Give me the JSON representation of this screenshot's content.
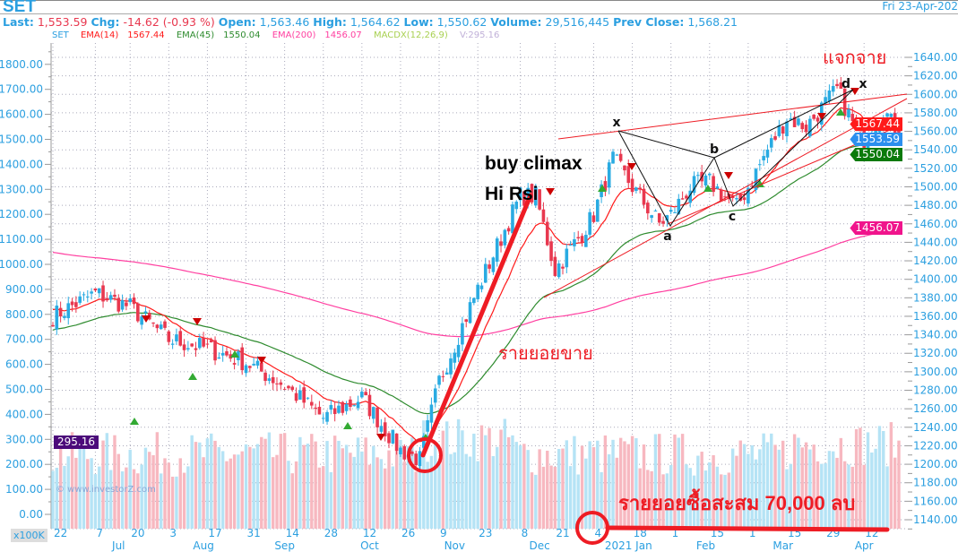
{
  "header": {
    "symbol": "SET",
    "date": "Fri 23-Apr-202",
    "last_label": "Last:",
    "last": "1,553.59",
    "chg_label": "Chg:",
    "chg": "-14.62 (-0.93 %)",
    "open_label": "Open:",
    "open": "1,563.46",
    "high_label": "High:",
    "high": "1,564.62",
    "low_label": "Low:",
    "low": "1,550.62",
    "volume_label": "Volume:",
    "volume": "29,516,445",
    "prev_label": "Prev Close:",
    "prev": "1,568.21"
  },
  "legend": {
    "symbol": "SET",
    "ema14_label": "EMA(14)",
    "ema14": "1567.44",
    "ema45_label": "EMA(45)",
    "ema45": "1550.04",
    "ema200_label": "EMA(200)",
    "ema200": "1456.07",
    "macd_label": "MACDX(12,26,9)",
    "vol_label": "V:295.16"
  },
  "colors": {
    "up": "#29abe2",
    "down": "#e8384f",
    "ema14": "#ff1a1a",
    "ema45": "#2e8b2e",
    "ema200": "#ff3fa0",
    "vol_up": "#b5e3f5",
    "vol_down": "#f7b8c0",
    "annot": "#ee1c24",
    "axis_text": "#2b9fe0"
  },
  "tags": {
    "ema14": "1567.44",
    "last": "1553.59",
    "ema45": "1550.04",
    "ema200": "1456.07",
    "volume": "295.16"
  },
  "volume_unit": "x100K",
  "copyright": "© www.investorZ.com",
  "annotations": {
    "buy_climax": "buy climax",
    "hi_rsi": "Hi Rsi",
    "retail_sell": "รายยอยขาย",
    "distribution": "แจกจาย",
    "retail_buy": "รายยอยซื้อสะสม 70,000 ลบ",
    "points": [
      "x",
      "a",
      "b",
      "c",
      "d",
      "x"
    ]
  },
  "chart_data": {
    "type": "candlestick",
    "title": "SET",
    "y_right": {
      "label": "",
      "range": [
        1140,
        1640
      ],
      "ticks": [
        1140,
        1160,
        1180,
        1200,
        1220,
        1240,
        1260,
        1280,
        1300,
        1320,
        1340,
        1360,
        1380,
        1400,
        1420,
        1440,
        1460,
        1480,
        1500,
        1520,
        1540,
        1560,
        1580,
        1600,
        1620,
        1640
      ]
    },
    "y_left": {
      "label": "x100K",
      "range": [
        0,
        1800
      ],
      "ticks": [
        0,
        100,
        200,
        300,
        400,
        500,
        600,
        700,
        800,
        900,
        1000,
        1100,
        1200,
        1300,
        1400,
        1500,
        1600,
        1700,
        1800
      ]
    },
    "x_range": [
      "2020-06-22",
      "2021-04-23"
    ],
    "x_ticks": [
      {
        "date": "2020-06-22",
        "label": "22"
      },
      {
        "date": "2020-07-07",
        "label": "7"
      },
      {
        "date": "2020-07-20",
        "label": "20"
      },
      {
        "date": "2020-08-03",
        "label": "3"
      },
      {
        "date": "2020-08-17",
        "label": "17"
      },
      {
        "date": "2020-08-31",
        "label": "31"
      },
      {
        "date": "2020-09-14",
        "label": "14"
      },
      {
        "date": "2020-09-28",
        "label": "28"
      },
      {
        "date": "2020-10-12",
        "label": "12"
      },
      {
        "date": "2020-10-26",
        "label": "26"
      },
      {
        "date": "2020-11-09",
        "label": "9"
      },
      {
        "date": "2020-11-23",
        "label": "23"
      },
      {
        "date": "2020-12-08",
        "label": "8"
      },
      {
        "date": "2020-12-21",
        "label": "21"
      },
      {
        "date": "2021-01-04",
        "label": "4"
      },
      {
        "date": "2021-01-18",
        "label": "18"
      },
      {
        "date": "2021-02-01",
        "label": "1"
      },
      {
        "date": "2021-02-15",
        "label": "15"
      },
      {
        "date": "2021-03-01",
        "label": "1"
      },
      {
        "date": "2021-03-15",
        "label": "15"
      },
      {
        "date": "2021-03-29",
        "label": "29"
      },
      {
        "date": "2021-04-12",
        "label": "12"
      }
    ],
    "months": [
      {
        "date": "2020-07-15",
        "label": "Jul"
      },
      {
        "date": "2020-08-14",
        "label": "Aug"
      },
      {
        "date": "2020-09-14",
        "label": "Sep"
      },
      {
        "date": "2020-10-14",
        "label": "Oct"
      },
      {
        "date": "2020-11-13",
        "label": "Nov"
      },
      {
        "date": "2020-12-15",
        "label": "Dec"
      },
      {
        "date": "2021-01-15",
        "label": "2021 Jan"
      },
      {
        "date": "2021-02-12",
        "label": "Feb"
      },
      {
        "date": "2021-03-12",
        "label": "Mar"
      },
      {
        "date": "2021-04-12",
        "label": "Apr"
      }
    ],
    "close_keypoints": [
      [
        "2020-06-22",
        1360
      ],
      [
        "2020-07-07",
        1385
      ],
      [
        "2020-07-20",
        1370
      ],
      [
        "2020-08-03",
        1335
      ],
      [
        "2020-08-17",
        1325
      ],
      [
        "2020-08-31",
        1310
      ],
      [
        "2020-09-14",
        1285
      ],
      [
        "2020-09-28",
        1250
      ],
      [
        "2020-10-12",
        1272
      ],
      [
        "2020-10-26",
        1215
      ],
      [
        "2020-11-02",
        1205
      ],
      [
        "2020-11-09",
        1290
      ],
      [
        "2020-11-16",
        1340
      ],
      [
        "2020-11-23",
        1390
      ],
      [
        "2020-12-08",
        1490
      ],
      [
        "2020-12-14",
        1490
      ],
      [
        "2020-12-21",
        1410
      ],
      [
        "2020-12-30",
        1450
      ],
      [
        "2021-01-04",
        1470
      ],
      [
        "2021-01-11",
        1530
      ],
      [
        "2021-01-18",
        1500
      ],
      [
        "2021-01-27",
        1460
      ],
      [
        "2021-02-01",
        1470
      ],
      [
        "2021-02-08",
        1500
      ],
      [
        "2021-02-15",
        1505
      ],
      [
        "2021-02-24",
        1478
      ],
      [
        "2021-03-01",
        1500
      ],
      [
        "2021-03-08",
        1540
      ],
      [
        "2021-03-15",
        1575
      ],
      [
        "2021-03-22",
        1565
      ],
      [
        "2021-03-29",
        1590
      ],
      [
        "2021-04-01",
        1605
      ],
      [
        "2021-04-08",
        1560
      ],
      [
        "2021-04-12",
        1550
      ],
      [
        "2021-04-19",
        1585
      ],
      [
        "2021-04-23",
        1553.59
      ]
    ],
    "ema_last": {
      "EMA(14)": 1567.44,
      "EMA(45)": 1550.04,
      "EMA(200)": 1456.07
    },
    "last_volume": 295.16
  }
}
